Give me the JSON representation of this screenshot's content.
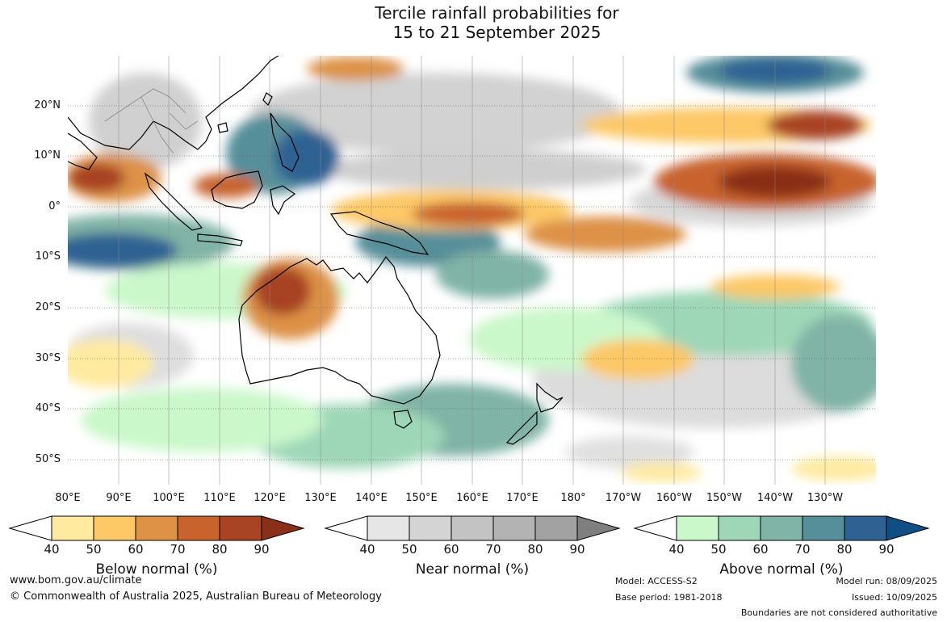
{
  "title_line1": "Tercile rainfall probabilities for",
  "title_line2": "15 to 21 September 2025",
  "lat_labels": [
    "20°N",
    "10°N",
    "0°",
    "10°S",
    "20°S",
    "30°S",
    "40°S",
    "50°S"
  ],
  "lon_labels": [
    "80°E",
    "90°E",
    "100°E",
    "110°E",
    "120°E",
    "130°E",
    "140°E",
    "150°E",
    "160°E",
    "170°E",
    "180°",
    "170°W",
    "160°W",
    "150°W",
    "140°W",
    "130°W"
  ],
  "colorbars": [
    {
      "title": "Below normal (%)",
      "ticks": [
        "40",
        "50",
        "60",
        "70",
        "80",
        "90"
      ],
      "colors": [
        "#ffffff",
        "#ffeaa0",
        "#fdc866",
        "#dd9246",
        "#c8632e",
        "#a84323",
        "#8a2f18"
      ]
    },
    {
      "title": "Near normal (%)",
      "ticks": [
        "40",
        "50",
        "60",
        "70",
        "80",
        "90"
      ],
      "colors": [
        "#ffffff",
        "#e6e6e6",
        "#d4d4d4",
        "#c3c3c3",
        "#b3b3b3",
        "#a2a2a2",
        "#7f7f7f"
      ]
    },
    {
      "title": "Above normal (%)",
      "ticks": [
        "40",
        "50",
        "60",
        "70",
        "80",
        "90"
      ],
      "colors": [
        "#ffffff",
        "#cbf8cb",
        "#9ed7b8",
        "#80b4a6",
        "#568f9a",
        "#2f6293",
        "#0f4f85"
      ]
    }
  ],
  "footer": {
    "url": "www.bom.gov.au/climate",
    "copyright": "© Commonwealth of Australia 2025, Australian Bureau of Meteorology",
    "model": "Model: ACCESS-S2",
    "base_period": "Base period: 1981-2018",
    "model_run": "Model run: 08/09/2025",
    "issued": "Issued: 10/09/2025",
    "disclaimer": "Boundaries are not considered authoritative"
  }
}
